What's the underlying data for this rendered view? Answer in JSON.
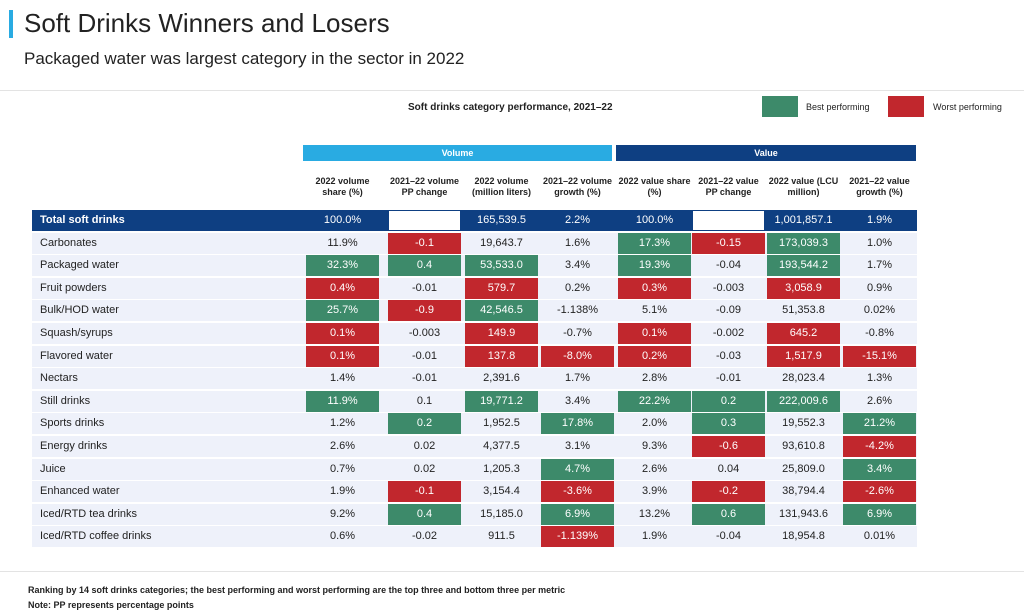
{
  "header": {
    "title": "Soft Drinks Winners and Losers",
    "subtitle": "Packaged water was largest category in the sector in 2022"
  },
  "colors": {
    "accent": "#29abe2",
    "volume_header": "#29abe2",
    "value_header": "#0e3f82",
    "best": "#3d8a6a",
    "worst": "#c1272d",
    "row_bg": "#eef1fa"
  },
  "chart_data": {
    "type": "table",
    "title": "Soft drinks category performance, 2021–22",
    "legend": [
      {
        "label": "Best performing",
        "color": "#3d8a6a"
      },
      {
        "label": "Worst performing",
        "color": "#c1272d"
      }
    ],
    "groups": [
      {
        "name": "Volume",
        "columns": 4
      },
      {
        "name": "Value",
        "columns": 4
      }
    ],
    "columns": [
      "2022 volume share (%)",
      "2021–22 volume PP change",
      "2022 volume (million liters)",
      "2021–22 volume growth (%)",
      "2022 value share (%)",
      "2021–22 value PP change",
      "2022 value (LCU million)",
      "2021–22 value growth (%)"
    ],
    "rows": [
      {
        "name": "Total soft drinks",
        "total": true,
        "values": [
          "100.0%",
          "",
          "165,539.5",
          "2.2%",
          "100.0%",
          "",
          "1,001,857.1",
          "1.9%"
        ],
        "marks": [
          "t",
          "w",
          "t",
          "t",
          "t",
          "w",
          "t",
          "t"
        ]
      },
      {
        "name": "Carbonates",
        "values": [
          "11.9%",
          "-0.1",
          "19,643.7",
          "1.6%",
          "17.3%",
          "-0.15",
          "173,039.3",
          "1.0%"
        ],
        "marks": [
          "",
          "W",
          "",
          "",
          "B",
          "W",
          "B",
          ""
        ]
      },
      {
        "name": "Packaged water",
        "values": [
          "32.3%",
          "0.4",
          "53,533.0",
          "3.4%",
          "19.3%",
          "-0.04",
          "193,544.2",
          "1.7%"
        ],
        "marks": [
          "B",
          "B",
          "B",
          "",
          "B",
          "",
          "B",
          ""
        ]
      },
      {
        "name": "Fruit powders",
        "values": [
          "0.4%",
          "-0.01",
          "579.7",
          "0.2%",
          "0.3%",
          "-0.003",
          "3,058.9",
          "0.9%"
        ],
        "marks": [
          "W",
          "",
          "W",
          "",
          "W",
          "",
          "W",
          ""
        ]
      },
      {
        "name": "Bulk/HOD water",
        "values": [
          "25.7%",
          "-0.9",
          "42,546.5",
          "-1.138%",
          "5.1%",
          "-0.09",
          "51,353.8",
          "0.02%"
        ],
        "marks": [
          "B",
          "W",
          "B",
          "",
          "",
          "",
          "",
          ""
        ]
      },
      {
        "name": "Squash/syrups",
        "values": [
          "0.1%",
          "-0.003",
          "149.9",
          "-0.7%",
          "0.1%",
          "-0.002",
          "645.2",
          "-0.8%"
        ],
        "marks": [
          "W",
          "",
          "W",
          "",
          "W",
          "",
          "W",
          ""
        ]
      },
      {
        "name": "Flavored water",
        "values": [
          "0.1%",
          "-0.01",
          "137.8",
          "-8.0%",
          "0.2%",
          "-0.03",
          "1,517.9",
          "-15.1%"
        ],
        "marks": [
          "W",
          "",
          "W",
          "W",
          "W",
          "",
          "W",
          "W"
        ]
      },
      {
        "name": "Nectars",
        "values": [
          "1.4%",
          "-0.01",
          "2,391.6",
          "1.7%",
          "2.8%",
          "-0.01",
          "28,023.4",
          "1.3%"
        ],
        "marks": [
          "",
          "",
          "",
          "",
          "",
          "",
          "",
          ""
        ]
      },
      {
        "name": "Still drinks",
        "values": [
          "11.9%",
          "0.1",
          "19,771.2",
          "3.4%",
          "22.2%",
          "0.2",
          "222,009.6",
          "2.6%"
        ],
        "marks": [
          "B",
          "",
          "B",
          "",
          "B",
          "B",
          "B",
          ""
        ]
      },
      {
        "name": "Sports drinks",
        "values": [
          "1.2%",
          "0.2",
          "1,952.5",
          "17.8%",
          "2.0%",
          "0.3",
          "19,552.3",
          "21.2%"
        ],
        "marks": [
          "",
          "B",
          "",
          "B",
          "",
          "B",
          "",
          "B"
        ]
      },
      {
        "name": "Energy drinks",
        "values": [
          "2.6%",
          "0.02",
          "4,377.5",
          "3.1%",
          "9.3%",
          "-0.6",
          "93,610.8",
          "-4.2%"
        ],
        "marks": [
          "",
          "",
          "",
          "",
          "",
          "W",
          "",
          "W"
        ]
      },
      {
        "name": "Juice",
        "values": [
          "0.7%",
          "0.02",
          "1,205.3",
          "4.7%",
          "2.6%",
          "0.04",
          "25,809.0",
          "3.4%"
        ],
        "marks": [
          "",
          "",
          "",
          "B",
          "",
          "",
          "",
          "B"
        ]
      },
      {
        "name": "Enhanced water",
        "values": [
          "1.9%",
          "-0.1",
          "3,154.4",
          "-3.6%",
          "3.9%",
          "-0.2",
          "38,794.4",
          "-2.6%"
        ],
        "marks": [
          "",
          "W",
          "",
          "W",
          "",
          "W",
          "",
          "W"
        ]
      },
      {
        "name": "Iced/RTD tea drinks",
        "values": [
          "9.2%",
          "0.4",
          "15,185.0",
          "6.9%",
          "13.2%",
          "0.6",
          "131,943.6",
          "6.9%"
        ],
        "marks": [
          "",
          "B",
          "",
          "B",
          "",
          "B",
          "",
          "B"
        ]
      },
      {
        "name": "Iced/RTD coffee drinks",
        "values": [
          "0.6%",
          "-0.02",
          "911.5",
          "-1.139%",
          "1.9%",
          "-0.04",
          "18,954.8",
          "0.01%"
        ],
        "marks": [
          "",
          "",
          "",
          "W",
          "",
          "",
          "",
          ""
        ]
      }
    ]
  },
  "footnotes": [
    "Ranking by 14 soft drinks categories; the best performing and worst performing are the top three and bottom three per metric",
    "Note: PP represents percentage points"
  ]
}
